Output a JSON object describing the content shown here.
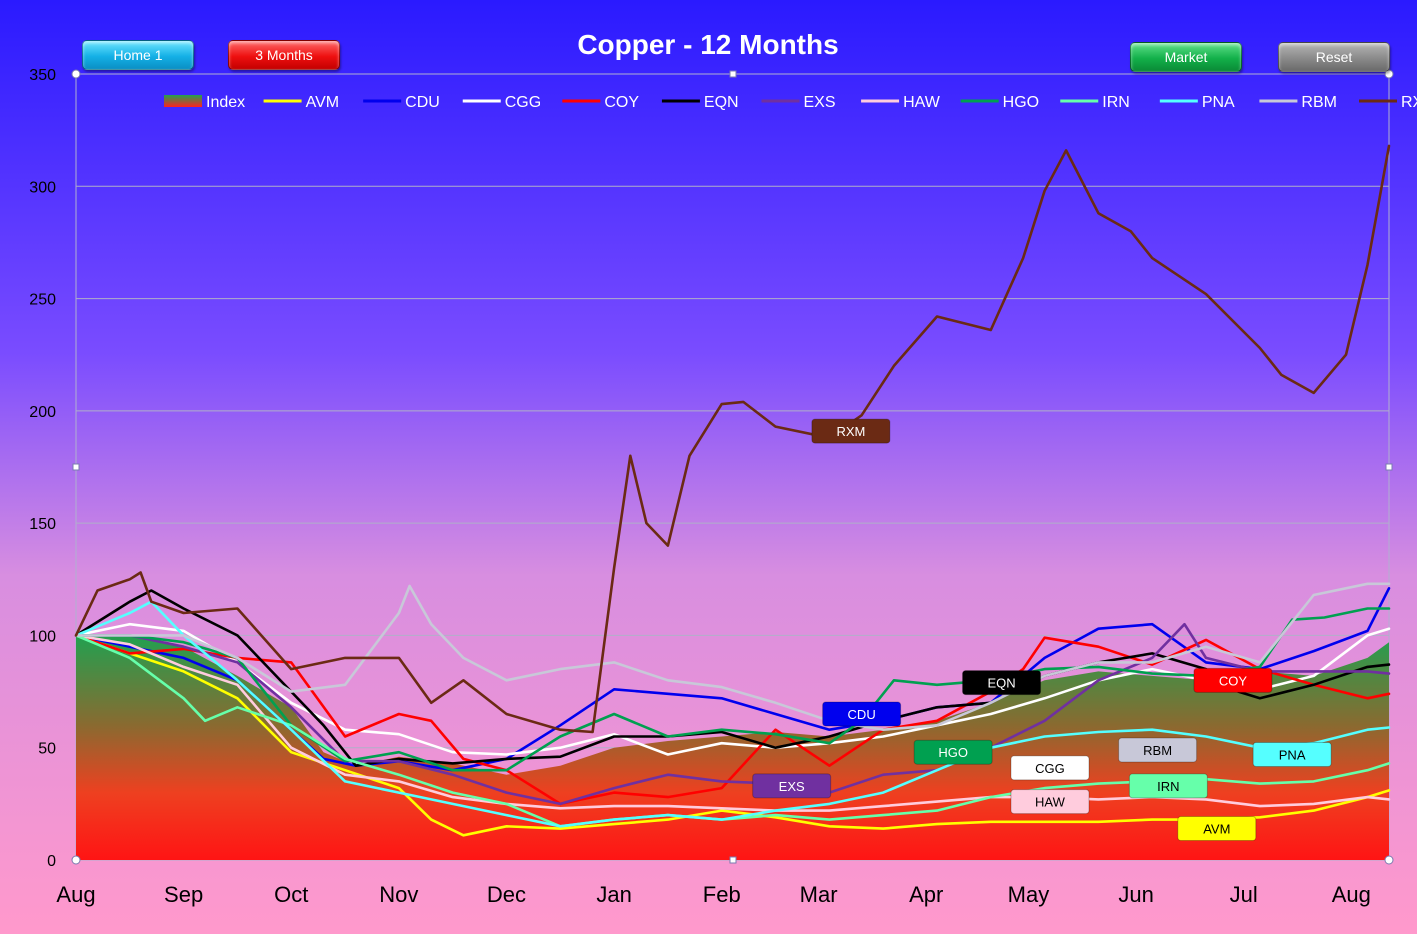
{
  "header": {
    "buttons": {
      "home": "Home 1",
      "three_months": "3 Months",
      "market": "Market",
      "reset": "Reset"
    }
  },
  "colors": {
    "background_top": "#2a1aff",
    "background_bottom": "#ff99cc",
    "index_area_top": "#22a050",
    "index_area_bottom": "#ff1a1a"
  },
  "chart_data": {
    "type": "line",
    "title": "Copper - 12 Months",
    "xlabel": "",
    "ylabel": "",
    "ylim": [
      0,
      350
    ],
    "yticks": [
      0,
      50,
      100,
      150,
      200,
      250,
      300,
      350
    ],
    "xlim": [
      0,
      12.2
    ],
    "month_labels": [
      {
        "label": "Aug",
        "x": 0
      },
      {
        "label": "Sep",
        "x": 1
      },
      {
        "label": "Oct",
        "x": 2
      },
      {
        "label": "Nov",
        "x": 3
      },
      {
        "label": "Dec",
        "x": 4
      },
      {
        "label": "Jan",
        "x": 5
      },
      {
        "label": "Feb",
        "x": 6
      },
      {
        "label": "Mar",
        "x": 6.9
      },
      {
        "label": "Apr",
        "x": 7.9
      },
      {
        "label": "May",
        "x": 8.85
      },
      {
        "label": "Jun",
        "x": 9.85
      },
      {
        "label": "Jul",
        "x": 10.85
      },
      {
        "label": "Aug",
        "x": 11.85
      }
    ],
    "grid": "horizontal",
    "legend_position": "top",
    "index_area": {
      "name": "Index",
      "x": [
        0,
        0.5,
        1,
        1.5,
        2,
        2.3,
        2.6,
        3,
        3.5,
        4,
        4.5,
        5,
        5.5,
        6,
        6.5,
        7,
        7.5,
        8,
        8.5,
        9,
        9.5,
        10,
        10.5,
        11,
        11.5,
        12,
        12.2
      ],
      "values": [
        100,
        100,
        95,
        82,
        68,
        48,
        42,
        46,
        43,
        38,
        42,
        50,
        53,
        55,
        57,
        55,
        58,
        62,
        70,
        80,
        84,
        82,
        80,
        84,
        82,
        90,
        97
      ]
    },
    "series": [
      {
        "name": "AVM",
        "color": "#ffff00",
        "label_x": 10.6,
        "label_y": 14,
        "x": [
          0,
          0.5,
          1,
          1.5,
          2,
          2.5,
          3,
          3.3,
          3.6,
          4,
          4.5,
          5,
          5.5,
          6,
          6.5,
          7,
          7.5,
          8,
          8.5,
          9,
          9.5,
          10,
          10.5,
          11,
          11.5,
          12,
          12.2
        ],
        "values": [
          100,
          92,
          84,
          72,
          48,
          40,
          32,
          18,
          11,
          15,
          14,
          16,
          18,
          22,
          19,
          15,
          14,
          16,
          17,
          17,
          17,
          18,
          18,
          19,
          22,
          28,
          31
        ]
      },
      {
        "name": "CDU",
        "color": "#0000ee",
        "label_x": 7.3,
        "label_y": 65,
        "x": [
          0,
          0.5,
          1,
          1.5,
          2,
          2.3,
          2.6,
          3,
          3.5,
          4,
          4.5,
          5,
          5.5,
          6,
          6.5,
          7,
          7.5,
          8,
          8.5,
          9,
          9.5,
          10,
          10.5,
          11,
          11.5,
          12,
          12.2
        ],
        "values": [
          100,
          95,
          90,
          80,
          58,
          45,
          42,
          44,
          40,
          45,
          60,
          76,
          74,
          72,
          65,
          58,
          62,
          68,
          70,
          90,
          103,
          105,
          88,
          85,
          93,
          102,
          121
        ]
      },
      {
        "name": "CGG",
        "color": "#ffffff",
        "label_x": 9.05,
        "label_y": 41,
        "x": [
          0,
          0.5,
          1,
          1.5,
          2,
          2.5,
          3,
          3.5,
          4,
          4.5,
          5,
          5.5,
          6,
          6.5,
          7,
          7.5,
          8,
          8.5,
          9,
          9.5,
          10,
          10.5,
          11,
          11.5,
          12,
          12.2
        ],
        "values": [
          100,
          105,
          102,
          88,
          70,
          58,
          56,
          48,
          47,
          50,
          56,
          47,
          52,
          50,
          52,
          55,
          60,
          65,
          72,
          80,
          85,
          80,
          76,
          82,
          100,
          103
        ]
      },
      {
        "name": "COY",
        "color": "#ff0000",
        "label_x": 10.75,
        "label_y": 80,
        "x": [
          0,
          0.5,
          1,
          1.5,
          2,
          2.5,
          3,
          3.3,
          3.6,
          4,
          4.5,
          5,
          5.5,
          6,
          6.5,
          7,
          7.5,
          8,
          8.5,
          8.8,
          9,
          9.5,
          10,
          10.5,
          11,
          11.5,
          12,
          12.2
        ],
        "values": [
          100,
          92,
          94,
          90,
          88,
          55,
          65,
          62,
          45,
          40,
          25,
          30,
          28,
          32,
          58,
          42,
          58,
          62,
          75,
          85,
          99,
          95,
          87,
          98,
          85,
          78,
          72,
          74
        ]
      },
      {
        "name": "EQN",
        "color": "#000000",
        "label_x": 8.6,
        "label_y": 79,
        "x": [
          0,
          0.5,
          0.7,
          1,
          1.5,
          2,
          2.3,
          2.6,
          3,
          3.5,
          4,
          4.5,
          5,
          5.5,
          6,
          6.5,
          7,
          7.5,
          8,
          8.5,
          9,
          9.5,
          10,
          10.5,
          10.8,
          11,
          11.5,
          12,
          12.2
        ],
        "values": [
          100,
          115,
          120,
          112,
          100,
          75,
          60,
          42,
          45,
          43,
          45,
          46,
          55,
          55,
          57,
          50,
          55,
          62,
          68,
          70,
          82,
          88,
          92,
          85,
          75,
          72,
          78,
          86,
          87
        ]
      },
      {
        "name": "EXS",
        "color": "#7030a0",
        "label_x": 6.65,
        "label_y": 33,
        "x": [
          0,
          0.5,
          1,
          1.5,
          2,
          2.5,
          3,
          3.5,
          4,
          4.5,
          5,
          5.5,
          6,
          6.5,
          7,
          7.5,
          8,
          8.5,
          9,
          9.5,
          10,
          10.3,
          10.5,
          11,
          11.5,
          12,
          12.2
        ],
        "values": [
          100,
          100,
          95,
          88,
          68,
          44,
          44,
          38,
          30,
          25,
          32,
          38,
          35,
          34,
          30,
          38,
          40,
          50,
          62,
          80,
          90,
          105,
          90,
          84,
          84,
          84,
          83
        ]
      },
      {
        "name": "HAW",
        "color": "#ffccdd",
        "label_x": 9.05,
        "label_y": 26,
        "x": [
          0,
          0.5,
          1,
          1.5,
          2,
          2.5,
          3,
          3.5,
          4,
          4.5,
          5,
          5.5,
          6,
          6.5,
          7,
          7.5,
          8,
          8.5,
          9,
          9.5,
          10,
          10.5,
          11,
          11.5,
          12,
          12.2
        ],
        "values": [
          100,
          96,
          86,
          78,
          50,
          38,
          35,
          28,
          25,
          23,
          24,
          24,
          23,
          22,
          22,
          24,
          26,
          28,
          28,
          27,
          28,
          27,
          24,
          25,
          28,
          27
        ]
      },
      {
        "name": "HGO",
        "color": "#00a050",
        "label_x": 8.15,
        "label_y": 48,
        "x": [
          0,
          0.5,
          1,
          1.5,
          2,
          2.5,
          3,
          3.5,
          4,
          4.5,
          5,
          5.5,
          6,
          6.5,
          7,
          7.3,
          7.6,
          8,
          8.5,
          9,
          9.5,
          10,
          10.5,
          11,
          11.3,
          11.6,
          12,
          12.2
        ],
        "values": [
          100,
          100,
          97,
          90,
          60,
          44,
          48,
          40,
          40,
          55,
          65,
          55,
          58,
          56,
          52,
          62,
          80,
          78,
          80,
          85,
          86,
          83,
          82,
          86,
          107,
          108,
          112,
          112
        ]
      },
      {
        "name": "IRN",
        "color": "#66ffaa",
        "label_x": 10.15,
        "label_y": 33,
        "x": [
          0,
          0.5,
          1,
          1.2,
          1.5,
          2,
          2.5,
          3,
          3.5,
          4,
          4.5,
          5,
          5.5,
          6,
          6.5,
          7,
          7.5,
          8,
          8.5,
          9,
          9.5,
          10,
          10.5,
          11,
          11.5,
          12,
          12.2
        ],
        "values": [
          100,
          90,
          72,
          62,
          68,
          60,
          45,
          38,
          30,
          25,
          15,
          18,
          20,
          18,
          20,
          18,
          20,
          22,
          28,
          32,
          34,
          35,
          36,
          34,
          35,
          40,
          43
        ]
      },
      {
        "name": "PNA",
        "color": "#55ffff",
        "label_x": 11.3,
        "label_y": 47,
        "x": [
          0,
          0.5,
          0.7,
          1,
          1.5,
          2,
          2.5,
          3,
          3.5,
          4,
          4.5,
          5,
          5.5,
          6,
          6.5,
          7,
          7.5,
          8,
          8.5,
          9,
          9.5,
          10,
          10.5,
          11,
          11.5,
          12,
          12.2
        ],
        "values": [
          100,
          110,
          115,
          100,
          80,
          58,
          35,
          30,
          25,
          20,
          15,
          18,
          20,
          18,
          22,
          25,
          30,
          40,
          50,
          55,
          57,
          58,
          55,
          50,
          52,
          58,
          59
        ]
      },
      {
        "name": "RBM",
        "color": "#c8c8d8",
        "label_x": 10.05,
        "label_y": 49,
        "x": [
          0,
          0.5,
          1,
          1.5,
          2,
          2.5,
          3,
          3.1,
          3.3,
          3.6,
          4,
          4.5,
          5,
          5.5,
          6,
          6.5,
          7,
          7.5,
          8,
          8.5,
          9,
          9.5,
          10,
          10.5,
          11,
          11.5,
          12,
          12.2
        ],
        "values": [
          100,
          100,
          100,
          90,
          75,
          78,
          110,
          122,
          105,
          90,
          80,
          85,
          88,
          80,
          77,
          70,
          62,
          58,
          60,
          70,
          82,
          88,
          88,
          95,
          88,
          118,
          123,
          123
        ]
      },
      {
        "name": "RXM",
        "color": "#6b2a14",
        "label_x": 7.2,
        "label_y": 191,
        "x": [
          0,
          0.2,
          0.5,
          0.6,
          0.7,
          1,
          1.5,
          2,
          2.5,
          3,
          3.3,
          3.6,
          4,
          4.5,
          4.8,
          5,
          5.15,
          5.3,
          5.5,
          5.7,
          6,
          6.2,
          6.5,
          7,
          7.3,
          7.6,
          8,
          8.5,
          8.8,
          9,
          9.2,
          9.5,
          9.8,
          10,
          10.5,
          11,
          11.2,
          11.5,
          11.8,
          12,
          12.2
        ],
        "values": [
          100,
          120,
          125,
          128,
          115,
          110,
          112,
          85,
          90,
          90,
          70,
          80,
          65,
          58,
          57,
          130,
          180,
          150,
          140,
          180,
          203,
          204,
          193,
          188,
          198,
          220,
          242,
          236,
          268,
          298,
          316,
          288,
          280,
          268,
          252,
          228,
          216,
          208,
          225,
          265,
          318
        ]
      }
    ]
  }
}
